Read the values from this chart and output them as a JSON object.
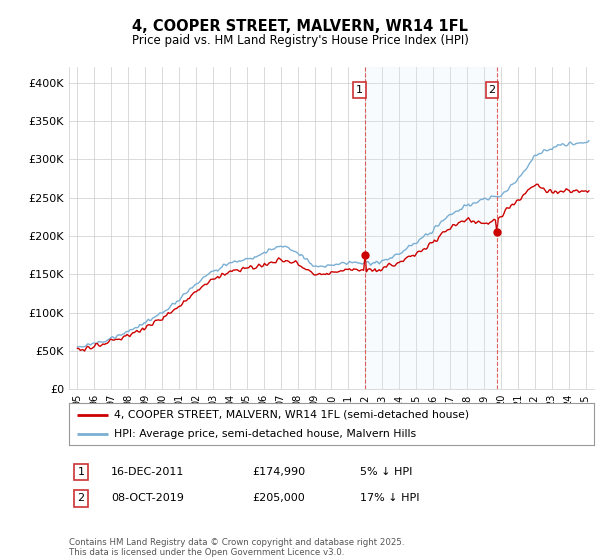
{
  "title": "4, COOPER STREET, MALVERN, WR14 1FL",
  "subtitle": "Price paid vs. HM Land Registry's House Price Index (HPI)",
  "ylim": [
    0,
    420000
  ],
  "yticks": [
    0,
    50000,
    100000,
    150000,
    200000,
    250000,
    300000,
    350000,
    400000
  ],
  "ytick_labels": [
    "£0",
    "£50K",
    "£100K",
    "£150K",
    "£200K",
    "£250K",
    "£300K",
    "£350K",
    "£400K"
  ],
  "legend_line1": "4, COOPER STREET, MALVERN, WR14 1FL (semi-detached house)",
  "legend_line2": "HPI: Average price, semi-detached house, Malvern Hills",
  "annotation1_label": "1",
  "annotation1_date": "16-DEC-2011",
  "annotation1_price": "£174,990",
  "annotation1_hpi": "5% ↓ HPI",
  "annotation2_label": "2",
  "annotation2_date": "08-OCT-2019",
  "annotation2_price": "£205,000",
  "annotation2_hpi": "17% ↓ HPI",
  "footer": "Contains HM Land Registry data © Crown copyright and database right 2025.\nThis data is licensed under the Open Government Licence v3.0.",
  "line_color_red": "#cc0000",
  "line_color_blue": "#7aafd4",
  "fill_color_blue": "#ddeef8",
  "background_color": "#ffffff",
  "ann1_year": 2011.96,
  "ann2_year": 2019.77,
  "ann1_price": 174990,
  "ann2_price": 205000
}
